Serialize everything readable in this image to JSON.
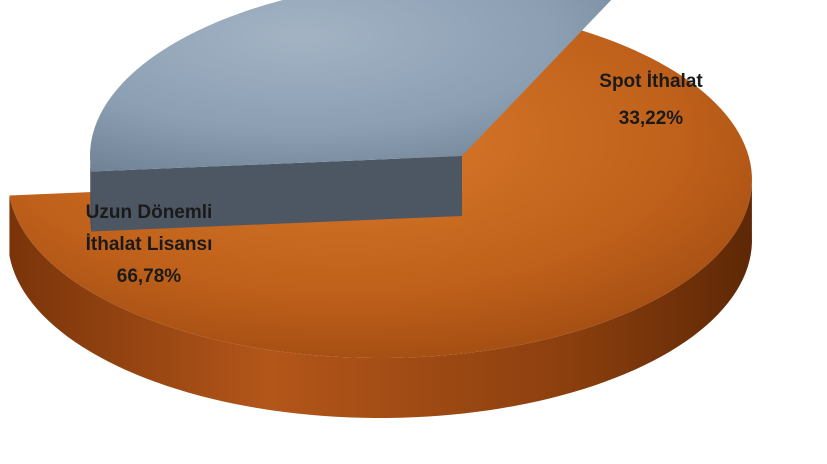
{
  "chart_data": {
    "type": "pie",
    "title": "",
    "legend": "none",
    "slices": [
      {
        "name": "Spot İthalat",
        "label_lines": [
          "Spot İthalat",
          "33,22%"
        ],
        "value": 33.22,
        "color": "#8c9fb3"
      },
      {
        "name": "Uzun Dönemli İthalat Lisansı",
        "label_lines": [
          "Uzun Dönemli",
          "İthalat Lisansı",
          "66,78%"
        ],
        "value": 66.78,
        "color": "#c0611b"
      }
    ]
  }
}
